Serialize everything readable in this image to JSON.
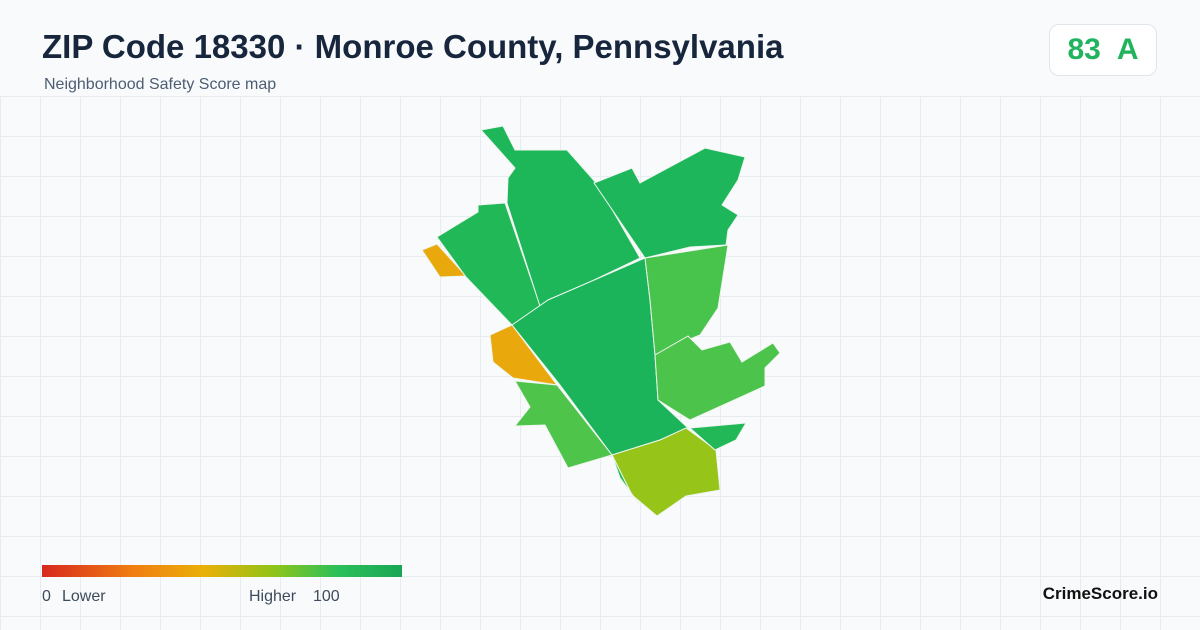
{
  "header": {
    "title": "ZIP Code 18330 · Monroe County, Pennsylvania",
    "subtitle": "Neighborhood Safety Score map"
  },
  "score": {
    "value": 83,
    "grade": "A"
  },
  "legend": {
    "min": 0,
    "min_label": "Lower",
    "max_label": "Higher",
    "max": 100
  },
  "footer": {
    "brand": "CrimeScore.io"
  }
}
